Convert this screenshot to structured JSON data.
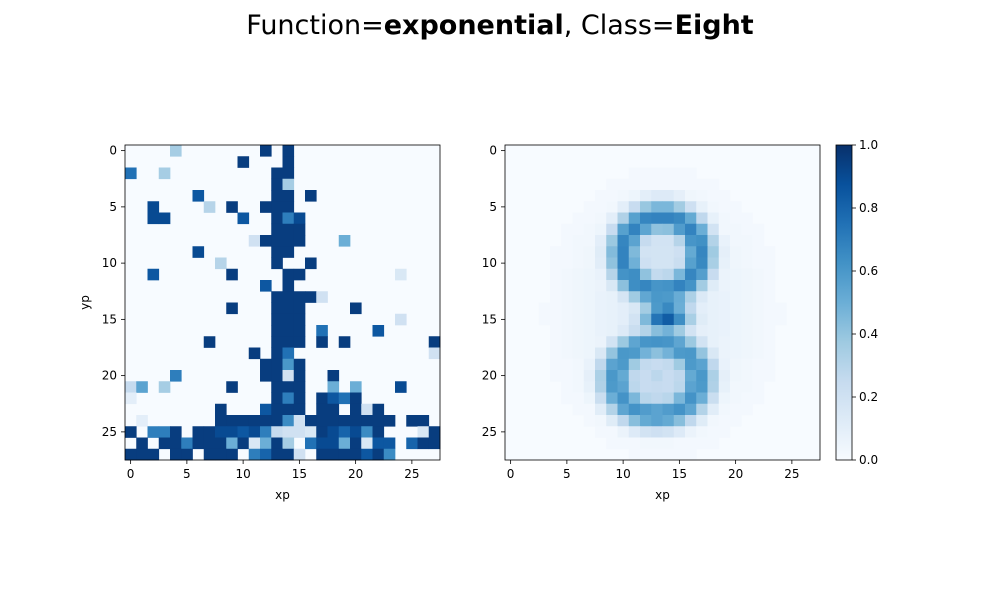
{
  "figure": {
    "title_prefix_1": "Function=",
    "title_bold_1": "exponential",
    "title_mid": ", Class=",
    "title_bold_2": "Eight"
  },
  "colormap": {
    "name": "Blues",
    "low": "#f7fbff",
    "high": "#08306b"
  },
  "chart_data": [
    {
      "type": "heatmap",
      "panel": "left",
      "title": "",
      "xlabel": "xp",
      "ylabel": "yp",
      "x_ticks": [
        0,
        5,
        10,
        15,
        20,
        25
      ],
      "y_ticks": [
        0,
        5,
        10,
        15,
        20,
        25
      ],
      "xlim": [
        -0.5,
        27.5
      ],
      "ylim": [
        27.5,
        -0.5
      ],
      "vmin": 0,
      "vmax": 1,
      "grid": false,
      "nx": 28,
      "ny": 28,
      "cells": [
        [
          4,
          0,
          0.35
        ],
        [
          12,
          0,
          0.95
        ],
        [
          14,
          0,
          0.95
        ],
        [
          10,
          1,
          0.95
        ],
        [
          14,
          1,
          0.95
        ],
        [
          0,
          2,
          0.75
        ],
        [
          3,
          2,
          0.35
        ],
        [
          13,
          2,
          0.95
        ],
        [
          14,
          2,
          0.95
        ],
        [
          13,
          3,
          0.95
        ],
        [
          14,
          3,
          0.35
        ],
        [
          6,
          4,
          0.85
        ],
        [
          13,
          4,
          0.95
        ],
        [
          14,
          4,
          0.95
        ],
        [
          16,
          4,
          0.95
        ],
        [
          2,
          5,
          0.9
        ],
        [
          7,
          5,
          0.3
        ],
        [
          9,
          5,
          0.95
        ],
        [
          12,
          5,
          0.95
        ],
        [
          13,
          5,
          0.95
        ],
        [
          14,
          5,
          0.95
        ],
        [
          2,
          6,
          0.9
        ],
        [
          3,
          6,
          0.9
        ],
        [
          10,
          6,
          0.85
        ],
        [
          13,
          6,
          0.95
        ],
        [
          14,
          6,
          0.7
        ],
        [
          15,
          6,
          0.9
        ],
        [
          13,
          7,
          0.95
        ],
        [
          14,
          7,
          0.95
        ],
        [
          15,
          7,
          0.95
        ],
        [
          11,
          8,
          0.2
        ],
        [
          12,
          8,
          0.95
        ],
        [
          13,
          8,
          0.95
        ],
        [
          14,
          8,
          0.95
        ],
        [
          15,
          8,
          0.95
        ],
        [
          19,
          8,
          0.5
        ],
        [
          6,
          9,
          0.9
        ],
        [
          13,
          9,
          0.95
        ],
        [
          14,
          9,
          0.95
        ],
        [
          8,
          10,
          0.3
        ],
        [
          13,
          10,
          0.95
        ],
        [
          16,
          10,
          0.95
        ],
        [
          2,
          11,
          0.85
        ],
        [
          9,
          11,
          0.95
        ],
        [
          14,
          11,
          0.95
        ],
        [
          15,
          11,
          0.95
        ],
        [
          24,
          11,
          0.15
        ],
        [
          12,
          12,
          0.85
        ],
        [
          14,
          12,
          0.95
        ],
        [
          13,
          13,
          0.95
        ],
        [
          14,
          13,
          0.95
        ],
        [
          15,
          13,
          0.95
        ],
        [
          16,
          13,
          0.95
        ],
        [
          17,
          13,
          0.2
        ],
        [
          9,
          14,
          0.95
        ],
        [
          13,
          14,
          0.95
        ],
        [
          14,
          14,
          0.95
        ],
        [
          15,
          14,
          0.95
        ],
        [
          20,
          14,
          0.95
        ],
        [
          13,
          15,
          0.95
        ],
        [
          14,
          15,
          0.95
        ],
        [
          15,
          15,
          0.95
        ],
        [
          24,
          15,
          0.2
        ],
        [
          13,
          16,
          0.95
        ],
        [
          14,
          16,
          0.95
        ],
        [
          15,
          16,
          0.95
        ],
        [
          17,
          16,
          0.75
        ],
        [
          22,
          16,
          0.85
        ],
        [
          7,
          17,
          0.95
        ],
        [
          13,
          17,
          0.95
        ],
        [
          14,
          17,
          0.95
        ],
        [
          15,
          17,
          0.95
        ],
        [
          17,
          17,
          0.95
        ],
        [
          19,
          17,
          0.95
        ],
        [
          27,
          17,
          0.95
        ],
        [
          11,
          18,
          0.95
        ],
        [
          13,
          18,
          0.95
        ],
        [
          14,
          18,
          0.75
        ],
        [
          27,
          18,
          0.2
        ],
        [
          12,
          19,
          0.95
        ],
        [
          13,
          19,
          0.95
        ],
        [
          14,
          19,
          0.6
        ],
        [
          15,
          19,
          0.95
        ],
        [
          4,
          20,
          0.7
        ],
        [
          12,
          20,
          0.95
        ],
        [
          13,
          20,
          0.95
        ],
        [
          14,
          20,
          0.2
        ],
        [
          15,
          20,
          0.95
        ],
        [
          18,
          20,
          0.95
        ],
        [
          0,
          21,
          0.25
        ],
        [
          1,
          21,
          0.55
        ],
        [
          3,
          21,
          0.35
        ],
        [
          9,
          21,
          0.95
        ],
        [
          13,
          21,
          0.95
        ],
        [
          14,
          21,
          0.95
        ],
        [
          15,
          21,
          0.95
        ],
        [
          18,
          21,
          0.5
        ],
        [
          20,
          21,
          0.5
        ],
        [
          24,
          21,
          0.9
        ],
        [
          0,
          22,
          0.1
        ],
        [
          13,
          22,
          0.95
        ],
        [
          14,
          22,
          0.7
        ],
        [
          15,
          22,
          0.95
        ],
        [
          17,
          22,
          0.95
        ],
        [
          18,
          22,
          0.85
        ],
        [
          19,
          22,
          0.75
        ],
        [
          20,
          22,
          0.95
        ],
        [
          8,
          23,
          0.95
        ],
        [
          12,
          23,
          0.85
        ],
        [
          13,
          23,
          0.95
        ],
        [
          14,
          23,
          0.95
        ],
        [
          15,
          23,
          0.95
        ],
        [
          17,
          23,
          0.95
        ],
        [
          18,
          23,
          0.95
        ],
        [
          20,
          23,
          0.95
        ],
        [
          21,
          23,
          0.2
        ],
        [
          22,
          23,
          0.95
        ],
        [
          1,
          24,
          0.1
        ],
        [
          8,
          24,
          0.95
        ],
        [
          9,
          24,
          0.95
        ],
        [
          10,
          24,
          0.95
        ],
        [
          11,
          24,
          0.95
        ],
        [
          12,
          24,
          0.95
        ],
        [
          13,
          24,
          0.95
        ],
        [
          14,
          24,
          0.65
        ],
        [
          15,
          24,
          0.2
        ],
        [
          16,
          24,
          0.95
        ],
        [
          17,
          24,
          0.95
        ],
        [
          18,
          24,
          0.95
        ],
        [
          19,
          24,
          0.95
        ],
        [
          20,
          24,
          0.95
        ],
        [
          21,
          24,
          0.95
        ],
        [
          22,
          24,
          0.95
        ],
        [
          23,
          24,
          0.95
        ],
        [
          25,
          24,
          0.95
        ],
        [
          26,
          24,
          0.95
        ],
        [
          0,
          25,
          0.95
        ],
        [
          2,
          25,
          0.7
        ],
        [
          3,
          25,
          0.7
        ],
        [
          4,
          25,
          0.95
        ],
        [
          6,
          25,
          0.95
        ],
        [
          7,
          25,
          0.95
        ],
        [
          8,
          25,
          0.9
        ],
        [
          9,
          25,
          0.9
        ],
        [
          10,
          25,
          0.85
        ],
        [
          11,
          25,
          0.9
        ],
        [
          12,
          25,
          0.7
        ],
        [
          13,
          25,
          0.25
        ],
        [
          14,
          25,
          0.2
        ],
        [
          15,
          25,
          0.2
        ],
        [
          16,
          25,
          0.15
        ],
        [
          17,
          25,
          0.95
        ],
        [
          18,
          25,
          0.9
        ],
        [
          19,
          25,
          0.8
        ],
        [
          20,
          25,
          0.9
        ],
        [
          21,
          25,
          0.65
        ],
        [
          22,
          25,
          0.95
        ],
        [
          26,
          25,
          0.15
        ],
        [
          27,
          25,
          0.95
        ],
        [
          1,
          26,
          0.95
        ],
        [
          3,
          26,
          0.95
        ],
        [
          4,
          26,
          0.95
        ],
        [
          5,
          26,
          0.7
        ],
        [
          6,
          26,
          0.95
        ],
        [
          7,
          26,
          0.95
        ],
        [
          8,
          26,
          0.95
        ],
        [
          9,
          26,
          0.5
        ],
        [
          10,
          26,
          0.95
        ],
        [
          11,
          26,
          0.15
        ],
        [
          12,
          26,
          0.5
        ],
        [
          13,
          26,
          0.95
        ],
        [
          14,
          26,
          0.35
        ],
        [
          16,
          26,
          0.75
        ],
        [
          17,
          26,
          0.9
        ],
        [
          18,
          26,
          0.9
        ],
        [
          19,
          26,
          0.5
        ],
        [
          20,
          26,
          0.95
        ],
        [
          21,
          26,
          0.15
        ],
        [
          22,
          26,
          0.85
        ],
        [
          23,
          26,
          0.85
        ],
        [
          25,
          26,
          0.8
        ],
        [
          26,
          26,
          0.95
        ],
        [
          27,
          26,
          0.95
        ],
        [
          0,
          27,
          0.95
        ],
        [
          1,
          27,
          0.95
        ],
        [
          2,
          27,
          0.95
        ],
        [
          4,
          27,
          0.95
        ],
        [
          5,
          27,
          0.95
        ],
        [
          7,
          27,
          0.95
        ],
        [
          8,
          27,
          0.95
        ],
        [
          9,
          27,
          0.95
        ],
        [
          11,
          27,
          0.7
        ],
        [
          12,
          27,
          0.8
        ],
        [
          13,
          27,
          0.95
        ],
        [
          14,
          27,
          0.95
        ],
        [
          15,
          27,
          0.2
        ],
        [
          17,
          27,
          0.95
        ],
        [
          18,
          27,
          0.95
        ],
        [
          19,
          27,
          0.95
        ],
        [
          20,
          27,
          0.95
        ],
        [
          21,
          27,
          0.85
        ],
        [
          22,
          27,
          0.95
        ],
        [
          23,
          27,
          0.65
        ]
      ]
    },
    {
      "type": "heatmap",
      "panel": "right",
      "title": "",
      "xlabel": "xp",
      "ylabel": "",
      "x_ticks": [
        0,
        5,
        10,
        15,
        20,
        25
      ],
      "y_ticks": [
        0,
        5,
        10,
        15,
        20,
        25
      ],
      "xlim": [
        -0.5,
        27.5
      ],
      "ylim": [
        27.5,
        -0.5
      ],
      "vmin": 0,
      "vmax": 1,
      "grid": false,
      "nx": 28,
      "ny": 28,
      "shape": "figure-eight",
      "loops": [
        {
          "cx": 13.4,
          "cy": 9.2,
          "rx": 3.4,
          "ry": 3.3,
          "peak": 0.68,
          "center": 0.2
        },
        {
          "cx": 13.0,
          "cy": 20.3,
          "rx": 3.7,
          "ry": 3.2,
          "peak": 0.62,
          "center": 0.3
        }
      ],
      "waist": {
        "cx": 13.8,
        "cy": 14.8,
        "peak": 0.85
      },
      "colorbar": {
        "ticks": [
          0.0,
          0.2,
          0.4,
          0.6,
          0.8,
          1.0
        ],
        "tick_labels": [
          "0.0",
          "0.2",
          "0.4",
          "0.6",
          "0.8",
          "1.0"
        ]
      }
    }
  ]
}
